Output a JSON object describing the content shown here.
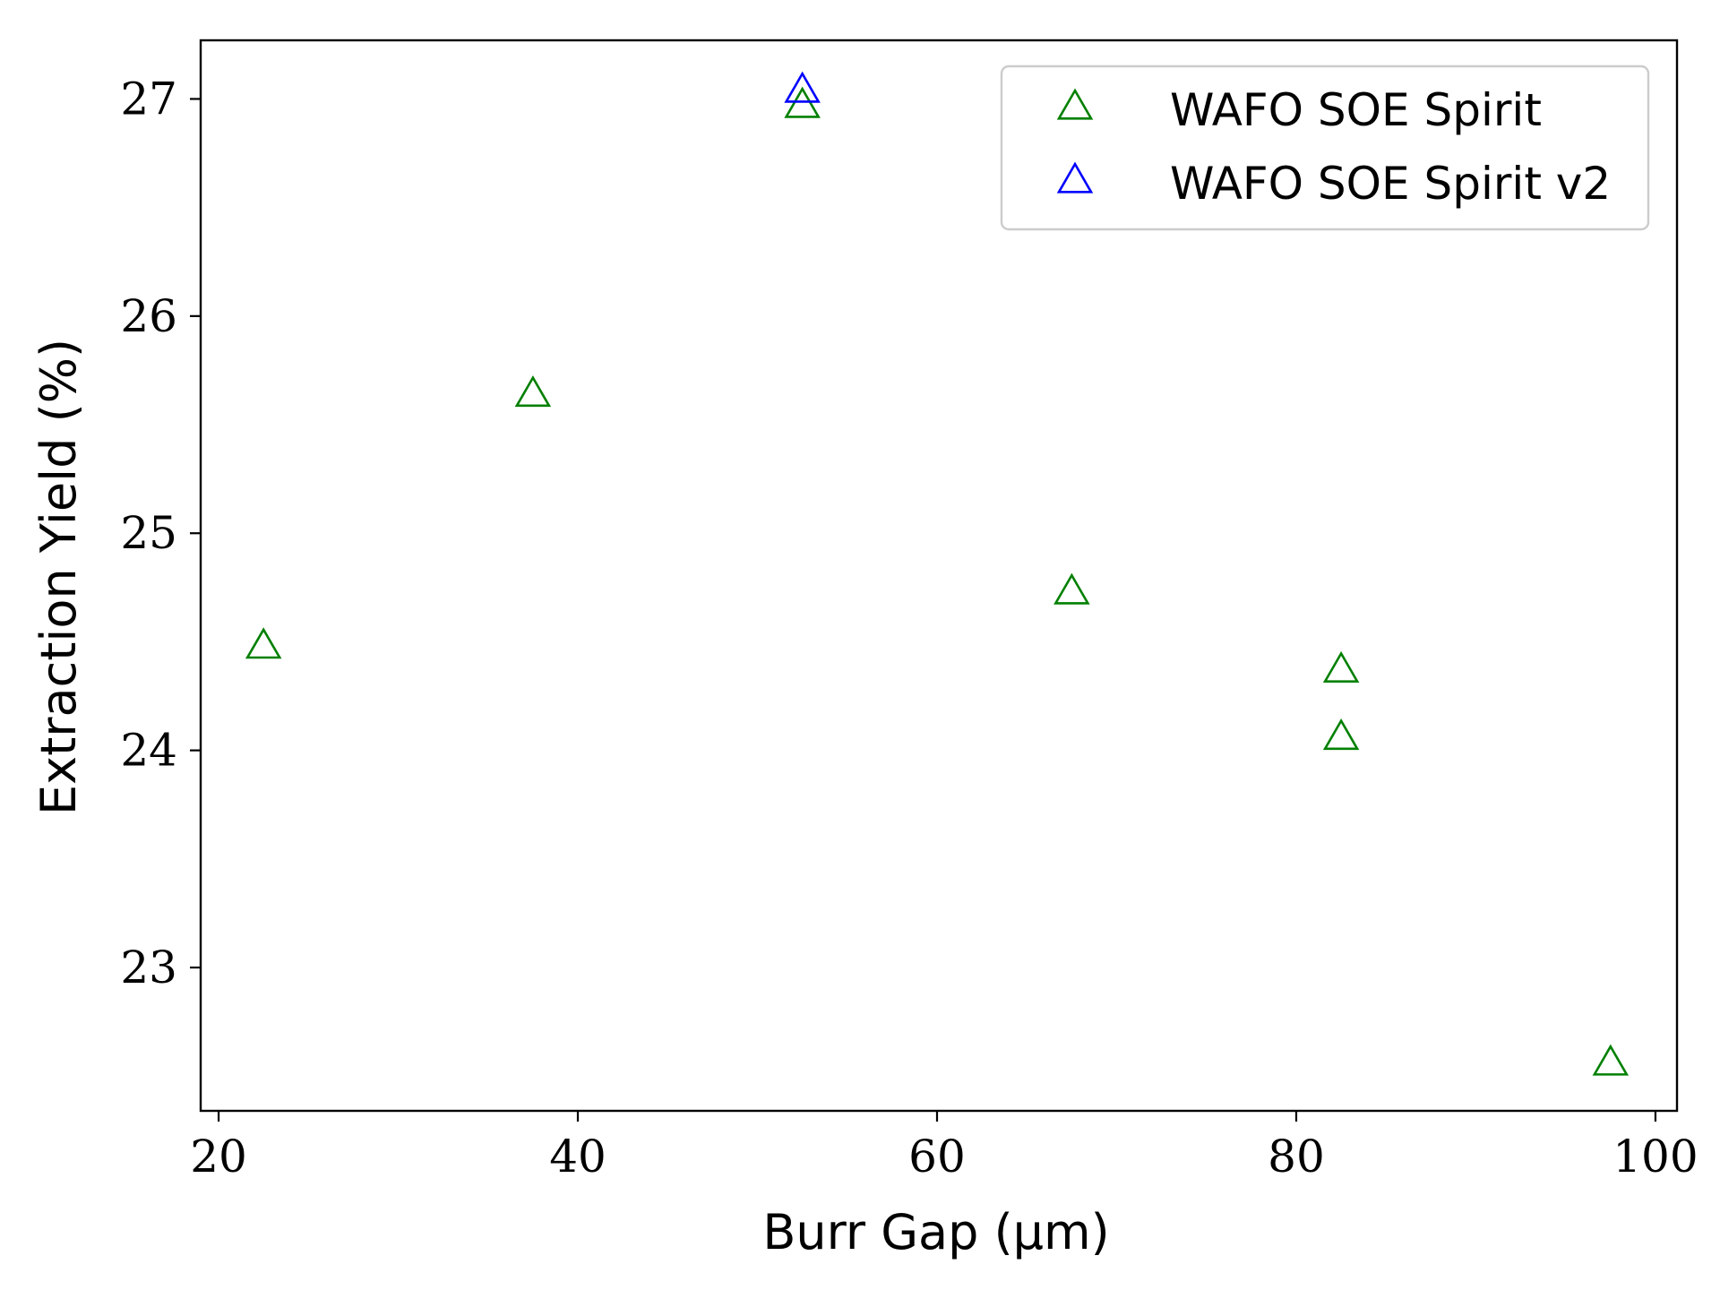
{
  "chart_data": {
    "type": "scatter",
    "xlabel": "Burr Gap (μm)",
    "ylabel": "Extraction Yield (%)",
    "xlim": [
      19,
      101.2
    ],
    "ylim": [
      22.34,
      27.27
    ],
    "xticks": [
      20,
      40,
      60,
      80,
      100
    ],
    "yticks": [
      23,
      24,
      25,
      26,
      27
    ],
    "grid": false,
    "legend_position": "top-right",
    "marker": "open triangle",
    "series": [
      {
        "name": "WAFO SOE Spirit",
        "color": "#008000",
        "points": [
          {
            "x": 22.5,
            "y": 24.47
          },
          {
            "x": 37.5,
            "y": 25.63
          },
          {
            "x": 52.5,
            "y": 26.96
          },
          {
            "x": 67.5,
            "y": 24.72
          },
          {
            "x": 82.5,
            "y": 24.36
          },
          {
            "x": 82.5,
            "y": 24.05
          },
          {
            "x": 97.5,
            "y": 22.55
          }
        ]
      },
      {
        "name": "WAFO SOE Spirit v2",
        "color": "#0000ff",
        "points": [
          {
            "x": 52.5,
            "y": 27.03
          }
        ]
      }
    ]
  }
}
